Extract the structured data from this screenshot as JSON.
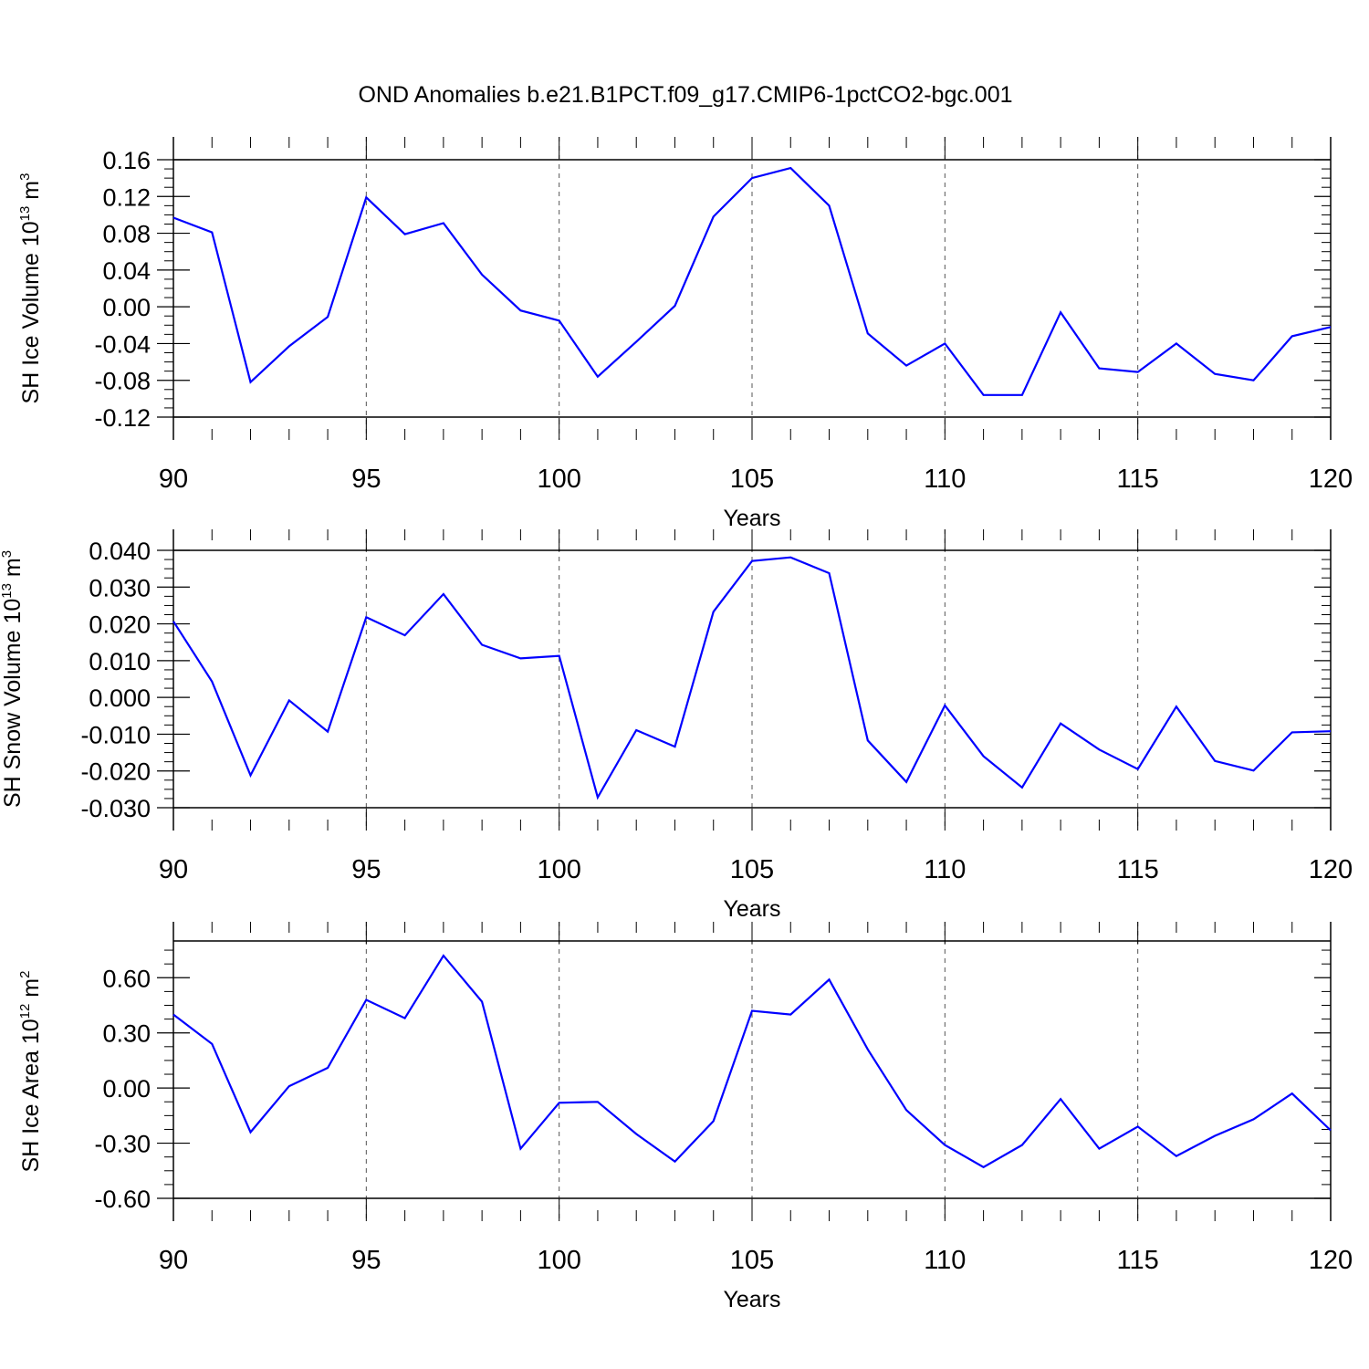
{
  "title": "OND Anomalies b.e21.B1PCT.f09_g17.CMIP6-1pctCO2-bgc.001",
  "colors": {
    "line": "#0000ff",
    "axis": "#000000",
    "grid": "#555555"
  },
  "chart_data": [
    {
      "type": "line",
      "ylabel": "SH Ice Volume",
      "ylabel_unit_base": "10",
      "ylabel_unit_exp": "13",
      "ylabel_unit": "m",
      "ylabel_unit_exp2": "3",
      "xlabel": "Years",
      "xlim": [
        90,
        120
      ],
      "ylim": [
        -0.12,
        0.16
      ],
      "y_ticks": [
        -0.12,
        -0.08,
        -0.04,
        0.0,
        0.04,
        0.08,
        0.12,
        0.16
      ],
      "y_tick_labels": [
        "-0.12",
        "-0.08",
        "-0.04",
        "0.00",
        "0.04",
        "0.08",
        "0.12",
        "0.16"
      ],
      "x_ticks": [
        90,
        95,
        100,
        105,
        110,
        115,
        120
      ],
      "x_tick_labels": [
        "90",
        "95",
        "100",
        "105",
        "110",
        "115",
        "120"
      ],
      "grid": "vertical dashed at major x ticks",
      "x": [
        90,
        91,
        92,
        93,
        94,
        95,
        96,
        97,
        98,
        99,
        100,
        101,
        102,
        103,
        104,
        105,
        106,
        107,
        108,
        109,
        110,
        111,
        112,
        113,
        114,
        115,
        116,
        117,
        118,
        119,
        120
      ],
      "y": [
        0.097,
        0.081,
        -0.082,
        -0.043,
        -0.011,
        0.119,
        0.079,
        0.091,
        0.035,
        -0.004,
        -0.015,
        -0.076,
        -0.038,
        0.001,
        0.098,
        0.14,
        0.151,
        0.11,
        -0.029,
        -0.064,
        -0.04,
        -0.096,
        -0.096,
        -0.006,
        -0.067,
        -0.071,
        -0.04,
        -0.073,
        -0.08,
        -0.032,
        -0.022
      ]
    },
    {
      "type": "line",
      "ylabel": "SH Snow Volume",
      "ylabel_unit_base": "10",
      "ylabel_unit_exp": "13",
      "ylabel_unit": "m",
      "ylabel_unit_exp2": "3",
      "xlabel": "Years",
      "xlim": [
        90,
        120
      ],
      "ylim": [
        -0.03,
        0.04
      ],
      "y_ticks": [
        -0.03,
        -0.02,
        -0.01,
        0.0,
        0.01,
        0.02,
        0.03,
        0.04
      ],
      "y_tick_labels": [
        "-0.030",
        "-0.020",
        "-0.010",
        "0.000",
        "0.010",
        "0.020",
        "0.030",
        "0.040"
      ],
      "x_ticks": [
        90,
        95,
        100,
        105,
        110,
        115,
        120
      ],
      "x_tick_labels": [
        "90",
        "95",
        "100",
        "105",
        "110",
        "115",
        "120"
      ],
      "grid": "vertical dashed at major x ticks",
      "x": [
        90,
        91,
        92,
        93,
        94,
        95,
        96,
        97,
        98,
        99,
        100,
        101,
        102,
        103,
        104,
        105,
        106,
        107,
        108,
        109,
        110,
        111,
        112,
        113,
        114,
        115,
        116,
        117,
        118,
        119,
        120
      ],
      "y": [
        0.0207,
        0.0043,
        -0.0212,
        -0.0008,
        -0.0093,
        0.0218,
        0.0169,
        0.0281,
        0.0143,
        0.0106,
        0.0113,
        -0.0272,
        -0.0089,
        -0.0134,
        0.0233,
        0.0371,
        0.0381,
        0.0338,
        -0.0117,
        -0.023,
        -0.0022,
        -0.016,
        -0.0245,
        -0.0071,
        -0.0142,
        -0.0195,
        -0.0025,
        -0.0173,
        -0.0199,
        -0.0095,
        -0.0092
      ]
    },
    {
      "type": "line",
      "ylabel": "SH Ice Area",
      "ylabel_unit_base": "10",
      "ylabel_unit_exp": "12",
      "ylabel_unit": "m",
      "ylabel_unit_exp2": "2",
      "xlabel": "Years",
      "xlim": [
        90,
        120
      ],
      "ylim": [
        -0.6,
        0.8
      ],
      "y_ticks": [
        -0.6,
        -0.3,
        0.0,
        0.3,
        0.6
      ],
      "y_tick_labels": [
        "-0.60",
        "-0.30",
        "0.00",
        "0.30",
        "0.60"
      ],
      "x_ticks": [
        90,
        95,
        100,
        105,
        110,
        115,
        120
      ],
      "x_tick_labels": [
        "90",
        "95",
        "100",
        "105",
        "110",
        "115",
        "120"
      ],
      "grid": "vertical dashed at major x ticks",
      "x": [
        90,
        91,
        92,
        93,
        94,
        95,
        96,
        97,
        98,
        99,
        100,
        101,
        102,
        103,
        104,
        105,
        106,
        107,
        108,
        109,
        110,
        111,
        112,
        113,
        114,
        115,
        116,
        117,
        118,
        119,
        120
      ],
      "y": [
        0.4,
        0.24,
        -0.24,
        0.01,
        0.11,
        0.48,
        0.38,
        0.72,
        0.47,
        -0.33,
        -0.08,
        -0.075,
        -0.25,
        -0.4,
        -0.18,
        0.42,
        0.4,
        0.59,
        0.21,
        -0.12,
        -0.31,
        -0.43,
        -0.31,
        -0.06,
        -0.33,
        -0.21,
        -0.37,
        -0.26,
        -0.17,
        -0.03,
        -0.23
      ]
    }
  ]
}
